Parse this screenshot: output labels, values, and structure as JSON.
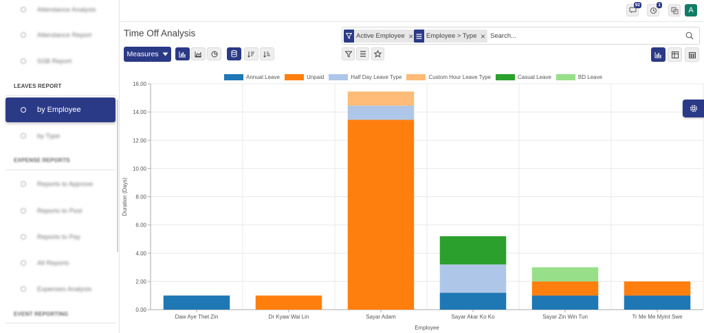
{
  "sidebar": {
    "items_top": [
      {
        "label": "Attendance Analysis"
      },
      {
        "label": "Attendance Report"
      },
      {
        "label": "SSB Report"
      }
    ],
    "section_leaves": "LEAVES REPORT",
    "active_item": "by Employee",
    "by_type": "by Type",
    "section_expense": "EXPENSE REPORTS",
    "expense_items": [
      {
        "label": "Reports to Approve"
      },
      {
        "label": "Reports to Post"
      },
      {
        "label": "Reports to Pay"
      },
      {
        "label": "All Reports"
      },
      {
        "label": "Expenses Analysis"
      }
    ],
    "section_event": "EVENT REPORTING"
  },
  "topbar": {
    "messages_count": "92",
    "activity_count": "1",
    "avatar_letter": "A"
  },
  "page": {
    "title": "Time Off Analysis",
    "measures_label": "Measures"
  },
  "search": {
    "facets": [
      {
        "label": "Active Employee",
        "icon": "filter-icon"
      },
      {
        "label": "Employee > Type",
        "icon": "group-by-icon"
      }
    ],
    "placeholder": "Search..."
  },
  "colors": {
    "accent": "#2b3a86",
    "annual": "#1f77b4",
    "unpaid": "#ff7f0e",
    "halfday": "#aec7e8",
    "customhour": "#ffbb78",
    "casual": "#2ca02c",
    "bd": "#98df8a"
  },
  "chart_data": {
    "type": "bar",
    "stacked": true,
    "categories": [
      "Daw Aye Thet Zin",
      "Dr Kyaw Wai Lin",
      "Sayar Adam",
      "Sayar Akar Ko Ko",
      "Sayar Zin Win Tun",
      "Tr Me Me Myint Swe"
    ],
    "series": [
      {
        "name": "Annual Leave",
        "color": "#1f77b4",
        "values": [
          1,
          0,
          0,
          1.2,
          1,
          1
        ]
      },
      {
        "name": "Unpaid",
        "color": "#ff7f0e",
        "values": [
          0,
          1,
          13.45,
          0,
          1,
          1
        ]
      },
      {
        "name": "Half Day Leave Type",
        "color": "#aec7e8",
        "values": [
          0,
          0,
          1,
          2,
          0,
          0
        ]
      },
      {
        "name": "Custom Hour Leave Type",
        "color": "#ffbb78",
        "values": [
          0,
          0,
          1,
          0,
          0,
          0
        ]
      },
      {
        "name": "Casual Leave",
        "color": "#2ca02c",
        "values": [
          0,
          0,
          0,
          2,
          0,
          0
        ]
      },
      {
        "name": "BD Leave",
        "color": "#98df8a",
        "values": [
          0,
          0,
          0,
          0,
          1,
          0
        ]
      }
    ],
    "ylim": [
      0,
      16
    ],
    "yticks": [
      "0.00",
      "2.00",
      "4.00",
      "6.00",
      "8.00",
      "10.00",
      "12.00",
      "14.00",
      "16.00"
    ],
    "xlabel": "Employee",
    "ylabel": "Duration (Days)",
    "grid": true,
    "legend": "top-center"
  }
}
